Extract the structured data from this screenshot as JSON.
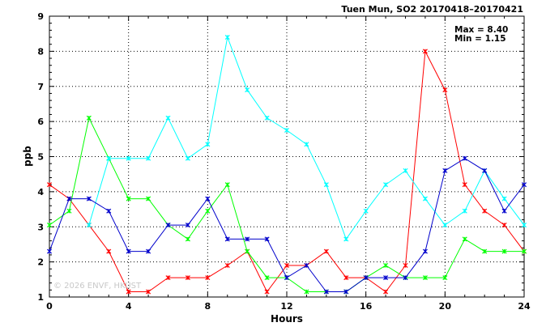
{
  "chart_data": {
    "type": "line",
    "title": "Tuen Mun, SO2 20170418–20170421",
    "xlabel": "Hours",
    "ylabel": "ppb",
    "xlim": [
      0,
      24
    ],
    "ylim": [
      1,
      9
    ],
    "xticks": [
      0,
      4,
      8,
      12,
      16,
      20,
      24
    ],
    "yticks": [
      1,
      2,
      3,
      4,
      5,
      6,
      7,
      8,
      9
    ],
    "grid": true,
    "stats": {
      "max": "Max = 8.40",
      "min": "Min = 1.15"
    },
    "watermark": "© 2026  ENVF, HKUST",
    "x": [
      0,
      1,
      2,
      3,
      4,
      5,
      6,
      7,
      8,
      9,
      10,
      11,
      12,
      13,
      14,
      15,
      16,
      17,
      18,
      19,
      20,
      21,
      22,
      23,
      24
    ],
    "series": [
      {
        "color": "#ff0000",
        "values": [
          4.2,
          3.8,
          3.05,
          2.3,
          1.15,
          1.15,
          1.55,
          1.55,
          1.55,
          1.9,
          2.3,
          1.15,
          1.9,
          1.9,
          2.3,
          1.55,
          1.55,
          1.15,
          1.9,
          8.0,
          6.9,
          4.2,
          3.45,
          3.05,
          2.3
        ]
      },
      {
        "color": "#00ff00",
        "values": [
          3.05,
          3.45,
          6.1,
          4.95,
          3.8,
          3.8,
          3.05,
          2.65,
          3.45,
          4.2,
          2.3,
          1.55,
          1.55,
          1.15,
          1.15,
          1.15,
          1.55,
          1.9,
          1.55,
          1.55,
          1.55,
          2.65,
          2.3,
          2.3,
          2.3
        ]
      },
      {
        "color": "#00ffff",
        "values": [
          null,
          null,
          3.05,
          4.95,
          4.95,
          4.95,
          6.1,
          4.95,
          5.35,
          8.4,
          6.9,
          6.1,
          5.75,
          5.35,
          4.2,
          2.65,
          3.45,
          4.2,
          4.6,
          3.8,
          3.05,
          3.45,
          4.6,
          3.8,
          3.05
        ]
      },
      {
        "color": "#0000cc",
        "values": [
          2.3,
          3.8,
          3.8,
          3.45,
          2.3,
          2.3,
          3.05,
          3.05,
          3.8,
          2.65,
          2.65,
          2.65,
          1.55,
          1.9,
          1.15,
          1.15,
          1.55,
          1.55,
          1.55,
          2.3,
          4.6,
          4.95,
          4.6,
          3.45,
          4.2
        ]
      }
    ]
  }
}
